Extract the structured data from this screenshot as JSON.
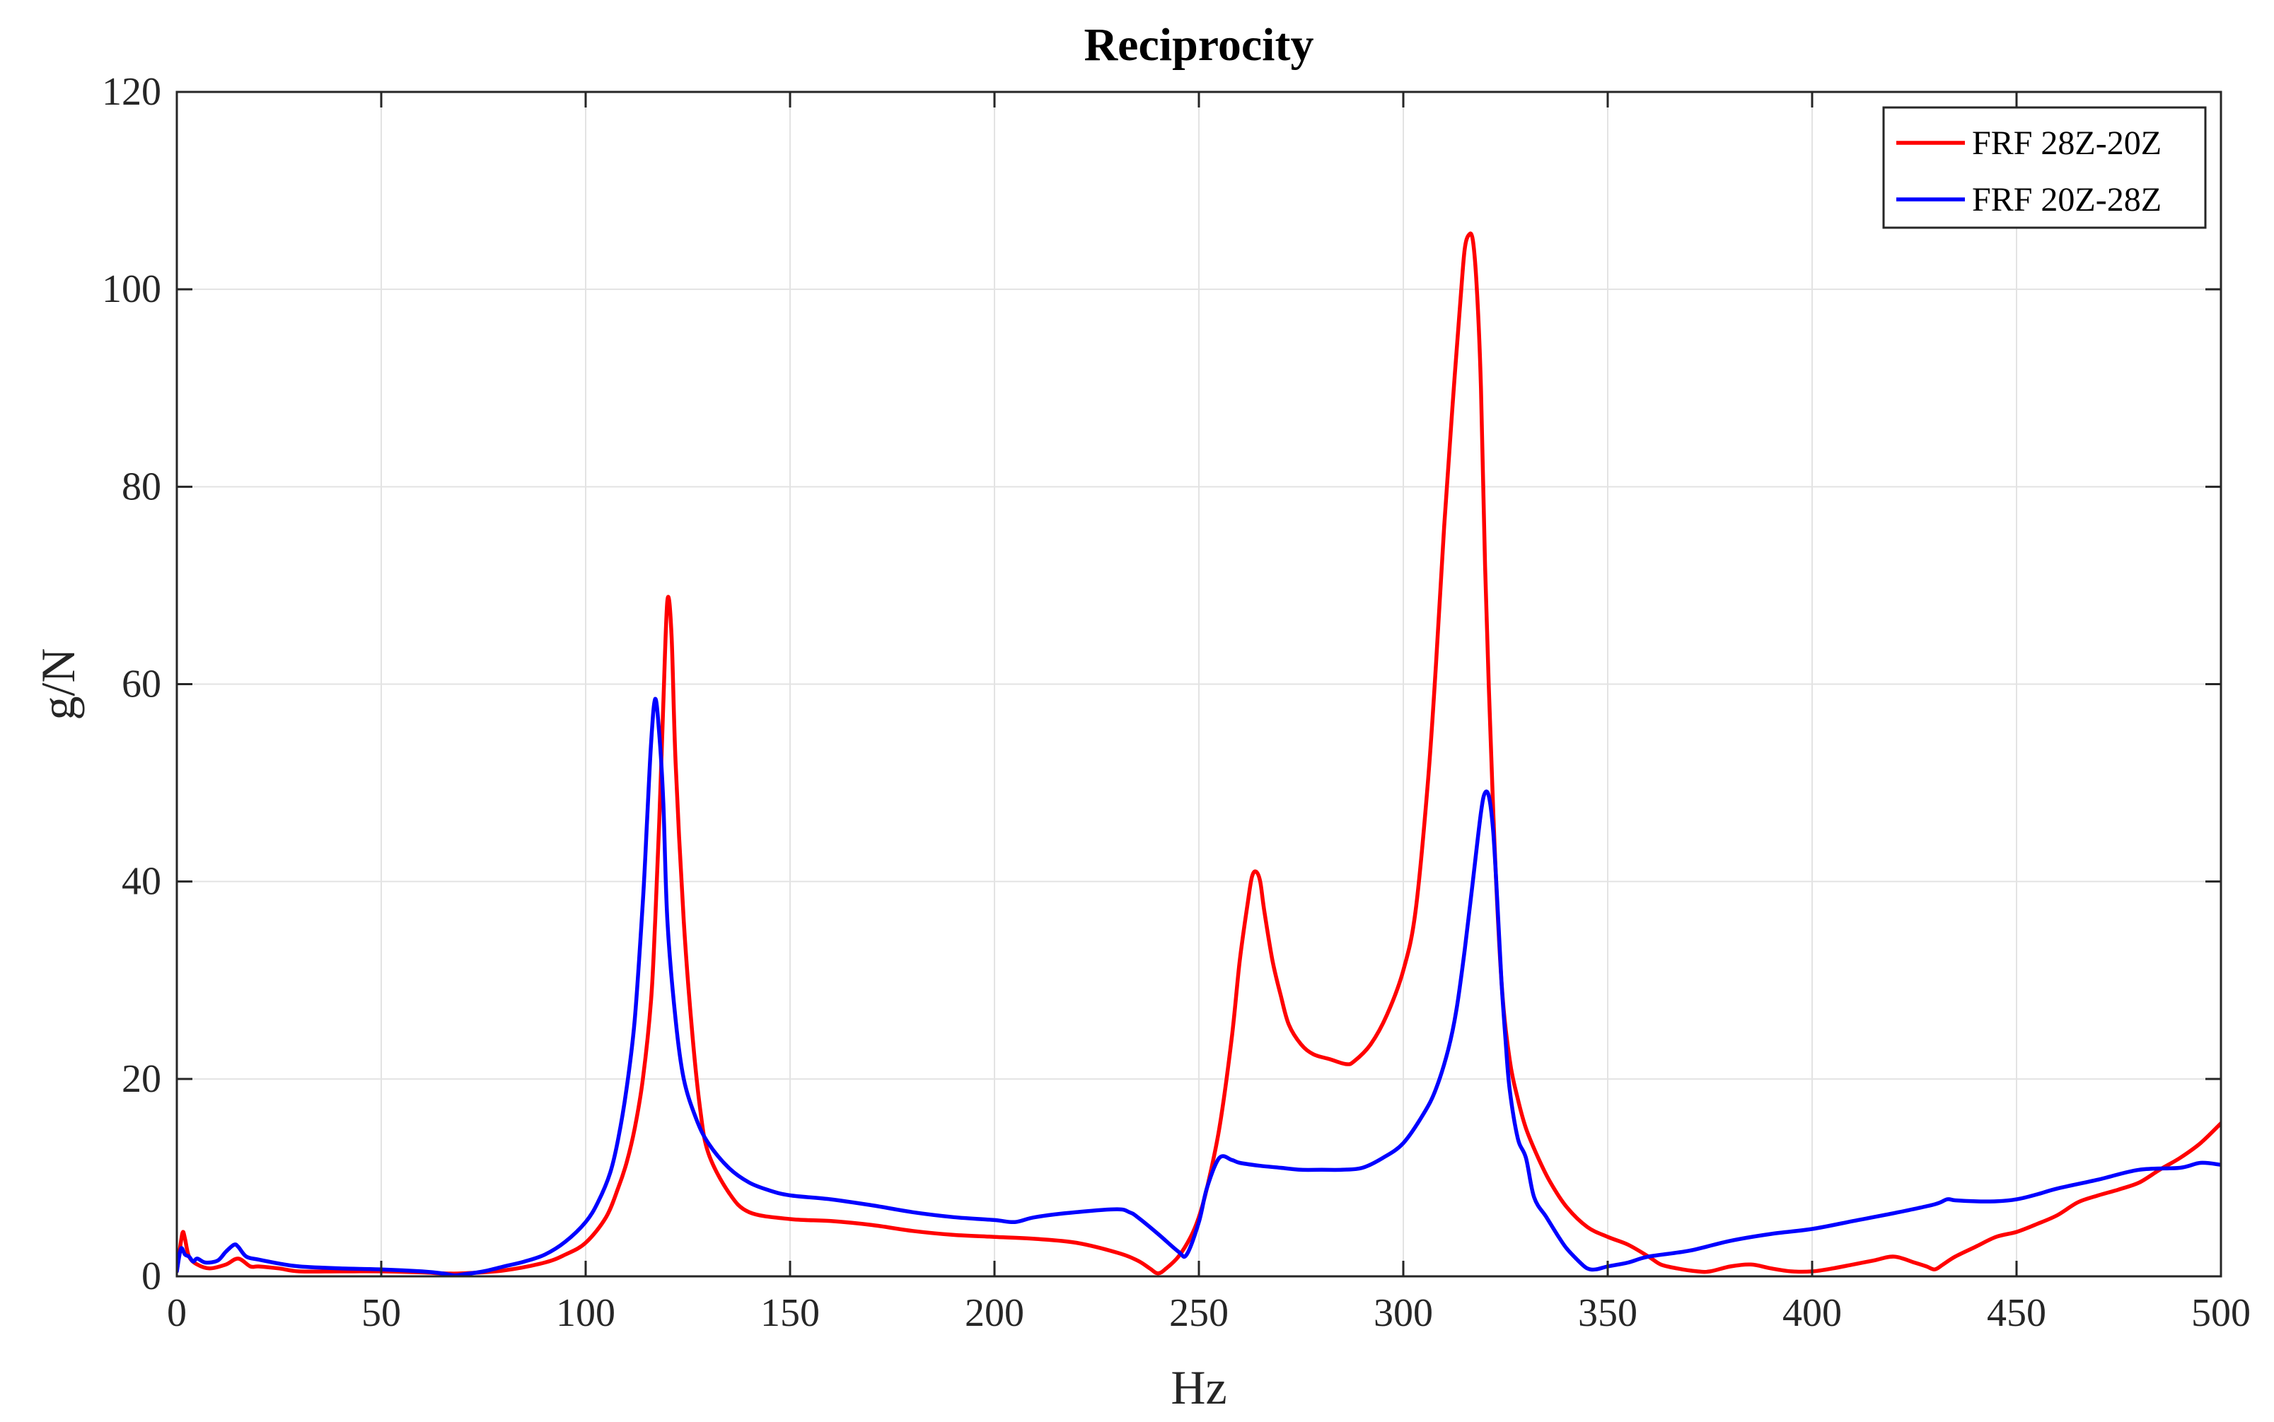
{
  "chart_data": {
    "type": "line",
    "title": "Reciprocity",
    "xlabel": "Hz",
    "ylabel": "g/N",
    "xlim": [
      0,
      500
    ],
    "ylim": [
      0,
      120
    ],
    "xticks": [
      "0",
      "50",
      "100",
      "150",
      "200",
      "250",
      "300",
      "350",
      "400",
      "450",
      "500"
    ],
    "yticks": [
      "0",
      "20",
      "40",
      "60",
      "80",
      "100",
      "120"
    ],
    "grid": true,
    "legend_position": "top-right",
    "series": [
      {
        "name": "FRF 28Z-20Z",
        "color": "#ff0000",
        "x": [
          0,
          1,
          1.5,
          2,
          3,
          5,
          8,
          12,
          15,
          18,
          20,
          25,
          30,
          40,
          50,
          60,
          65,
          70,
          80,
          90,
          95,
          100,
          105,
          108,
          110,
          112,
          114,
          116,
          117,
          118,
          119,
          120,
          121,
          122,
          124,
          126,
          128,
          130,
          135,
          140,
          150,
          160,
          170,
          180,
          190,
          200,
          210,
          220,
          230,
          235,
          238,
          240,
          242,
          245,
          248,
          250,
          252,
          255,
          258,
          260,
          262,
          263,
          264,
          265,
          266,
          268,
          270,
          272,
          275,
          278,
          282,
          286,
          288,
          292,
          296,
          300,
          303,
          306,
          308,
          310,
          312,
          314,
          315,
          316,
          317,
          318,
          319,
          320,
          322,
          324,
          326,
          328,
          330,
          333,
          336,
          340,
          345,
          350,
          355,
          360,
          363,
          367,
          372,
          375,
          380,
          385,
          390,
          395,
          400,
          405,
          410,
          415,
          420,
          425,
          428,
          430,
          432,
          435,
          440,
          445,
          450,
          455,
          460,
          465,
          470,
          475,
          480,
          485,
          490,
          495,
          500
        ],
        "y": [
          0.5,
          3.5,
          4.5,
          3.8,
          2.0,
          1.2,
          0.8,
          1.2,
          1.8,
          1.0,
          1.0,
          0.8,
          0.5,
          0.5,
          0.5,
          0.4,
          0.3,
          0.3,
          0.6,
          1.4,
          2.2,
          3.4,
          6.0,
          9.0,
          11.5,
          15.0,
          20.0,
          28.0,
          36.0,
          46.0,
          58.0,
          68.5,
          65.0,
          52.0,
          36.0,
          25.0,
          17.0,
          12.5,
          8.5,
          6.5,
          5.8,
          5.6,
          5.2,
          4.6,
          4.2,
          4.0,
          3.8,
          3.4,
          2.4,
          1.6,
          0.8,
          0.3,
          0.8,
          2.0,
          4.0,
          6.0,
          9.0,
          15.0,
          24.0,
          32.0,
          38.0,
          40.5,
          41.0,
          40.0,
          37.0,
          32.0,
          28.5,
          25.5,
          23.5,
          22.5,
          22.0,
          21.5,
          21.8,
          23.5,
          26.5,
          31.0,
          37.0,
          50.0,
          62.0,
          76.0,
          88.0,
          99.0,
          104.0,
          105.5,
          105.0,
          100.0,
          90.0,
          72.0,
          47.0,
          30.0,
          22.0,
          18.0,
          15.0,
          12.0,
          9.5,
          7.0,
          5.0,
          4.0,
          3.2,
          2.0,
          1.2,
          0.8,
          0.5,
          0.5,
          1.0,
          1.2,
          0.8,
          0.5,
          0.5,
          0.8,
          1.2,
          1.6,
          2.0,
          1.4,
          1.0,
          0.7,
          1.2,
          2.0,
          3.0,
          4.0,
          4.5,
          5.3,
          6.2,
          7.5,
          8.2,
          8.8,
          9.5,
          10.8,
          12.0,
          13.5,
          15.5
        ]
      },
      {
        "name": "FRF 20Z-28Z",
        "color": "#0000ff",
        "x": [
          0,
          1,
          2,
          3,
          4,
          5,
          7,
          10,
          12,
          14,
          15,
          17,
          20,
          25,
          30,
          40,
          50,
          60,
          65,
          68,
          70,
          75,
          80,
          85,
          90,
          95,
          100,
          103,
          106,
          108,
          110,
          112,
          114,
          115,
          116,
          117,
          118,
          119,
          120,
          122,
          124,
          127,
          130,
          135,
          140,
          145,
          150,
          160,
          170,
          180,
          190,
          200,
          205,
          210,
          220,
          230,
          233,
          235,
          240,
          245,
          247,
          250,
          252,
          255,
          258,
          260,
          265,
          270,
          275,
          280,
          285,
          290,
          295,
          300,
          305,
          308,
          311,
          313,
          315,
          317,
          319,
          320,
          321,
          322,
          323,
          324,
          325,
          326,
          328,
          330,
          332,
          335,
          338,
          340,
          343,
          345,
          347,
          350,
          355,
          360,
          370,
          380,
          390,
          400,
          410,
          420,
          430,
          433,
          435,
          440,
          445,
          450,
          455,
          460,
          470,
          480,
          490,
          495,
          500
        ],
        "y": [
          0.5,
          2.8,
          2.2,
          2.0,
          1.5,
          1.8,
          1.4,
          1.6,
          2.5,
          3.2,
          3.0,
          2.0,
          1.7,
          1.3,
          1.0,
          0.8,
          0.7,
          0.5,
          0.3,
          0.1,
          0.2,
          0.5,
          1.0,
          1.5,
          2.2,
          3.5,
          5.5,
          7.5,
          10.5,
          14.0,
          19.0,
          26.0,
          38.0,
          46.0,
          54.0,
          58.5,
          55.0,
          48.0,
          36.0,
          26.0,
          20.0,
          16.0,
          13.5,
          11.0,
          9.5,
          8.7,
          8.2,
          7.8,
          7.2,
          6.5,
          6.0,
          5.7,
          5.5,
          6.0,
          6.5,
          6.8,
          6.5,
          6.0,
          4.3,
          2.5,
          2.2,
          5.5,
          9.0,
          12.0,
          11.8,
          11.5,
          11.2,
          11.0,
          10.8,
          10.8,
          10.8,
          11.0,
          12.0,
          13.5,
          16.5,
          19.0,
          23.0,
          27.0,
          33.0,
          40.0,
          47.0,
          49.0,
          48.5,
          45.0,
          38.0,
          30.0,
          24.0,
          19.0,
          14.0,
          12.0,
          8.0,
          6.0,
          4.0,
          2.8,
          1.5,
          0.8,
          0.7,
          1.0,
          1.4,
          2.0,
          2.6,
          3.6,
          4.3,
          4.8,
          5.6,
          6.4,
          7.3,
          7.8,
          7.7,
          7.6,
          7.6,
          7.8,
          8.3,
          8.9,
          9.8,
          10.8,
          11.0,
          11.5,
          11.3
        ]
      }
    ]
  }
}
